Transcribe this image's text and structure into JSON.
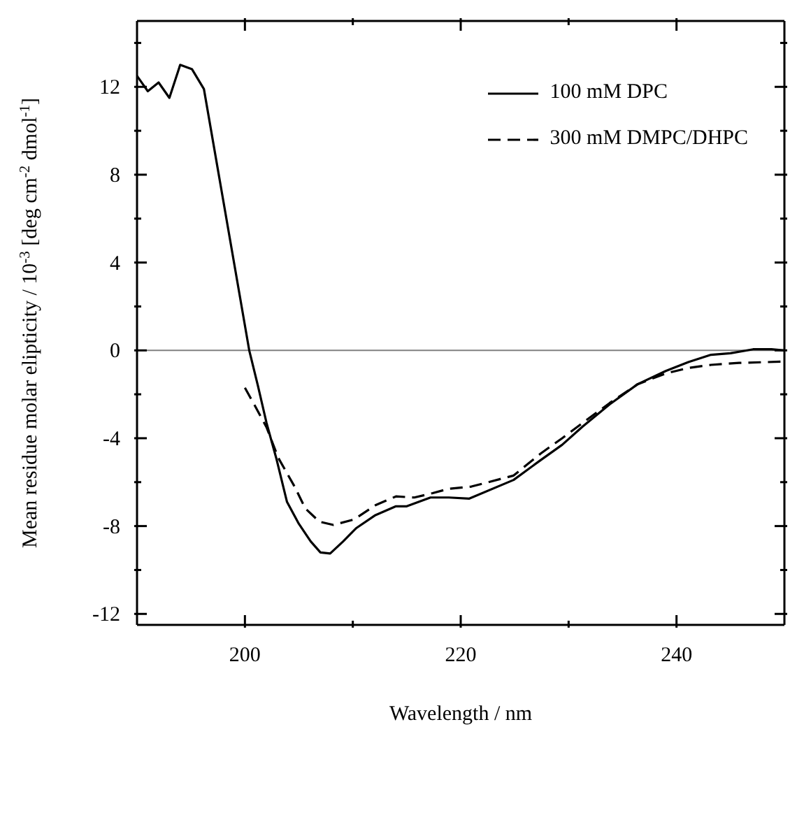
{
  "chart_data": {
    "type": "line",
    "xlabel": "Wavelength / nm",
    "ylabel": "Mean residue molar elipticity / 10$^{-3}$ [deg cm$^{-2}$ dmol$^{-1}$]",
    "xlim": [
      190,
      250
    ],
    "xticks": [
      200,
      {
        "value": 210,
        "label": null
      },
      220,
      {
        "value": 230,
        "label": null
      },
      240
    ],
    "ylim": [
      -12.5,
      15
    ],
    "yticks": [
      -12,
      {
        "value": -10,
        "label": null
      },
      -8,
      {
        "value": -6,
        "label": null
      },
      -4,
      {
        "value": -2,
        "label": null
      },
      0,
      {
        "value": 2,
        "label": null
      },
      4,
      {
        "value": 6,
        "label": null
      },
      8,
      {
        "value": 10,
        "label": null
      },
      12,
      {
        "value": 14,
        "label": null
      }
    ],
    "legend": "top right",
    "marker": "none",
    "ref_lines": [
      {
        "axis": "y",
        "value": 0,
        "color": "#808080"
      }
    ],
    "series": [
      {
        "name": "100 mM DPC",
        "color": "#000000",
        "line_style": "solid",
        "x": [
          190,
          191,
          192,
          193,
          194,
          195.1,
          196.2,
          200.4,
          201.2,
          202,
          202.9,
          203.9,
          205,
          206.1,
          207,
          207.9,
          209.1,
          210.3,
          212.1,
          214,
          215,
          217.2,
          218.9,
          220.8,
          224.9,
          227.4,
          229.4,
          231.3,
          233.8,
          236.4,
          239,
          241.1,
          243.2,
          245,
          247.1,
          248.8,
          250
        ],
        "values": [
          12.5,
          11.8,
          12.2,
          11.5,
          13.0,
          12.8,
          11.9,
          0,
          -1.6,
          -3.3,
          -4.9,
          -6.9,
          -7.9,
          -8.7,
          -9.2,
          -9.25,
          -8.7,
          -8.1,
          -7.5,
          -7.1,
          -7.1,
          -6.7,
          -6.7,
          -6.75,
          -5.9,
          -5.0,
          -4.3,
          -3.47,
          -2.46,
          -1.54,
          -0.94,
          -0.53,
          -0.2,
          -0.13,
          0.05,
          0.05,
          0
        ]
      },
      {
        "name": "300 mM DMPC/DHPC",
        "color": "#000000",
        "line_style": "dashed",
        "x": [
          200,
          200.9,
          202,
          203.1,
          204.6,
          205.6,
          206.9,
          208.2,
          210.1,
          212.1,
          214,
          215.7,
          217.4,
          218.9,
          221,
          224.9,
          227.4,
          229.4,
          231.3,
          233.8,
          236.4,
          239,
          241.1,
          243.2,
          245.8,
          250
        ],
        "values": [
          -1.7,
          -2.5,
          -3.5,
          -4.9,
          -6.2,
          -7.2,
          -7.8,
          -7.95,
          -7.7,
          -7.05,
          -6.65,
          -6.7,
          -6.5,
          -6.3,
          -6.2,
          -5.7,
          -4.7,
          -4.0,
          -3.3,
          -2.4,
          -1.54,
          -1.05,
          -0.8,
          -0.66,
          -0.57,
          -0.51
        ]
      }
    ]
  }
}
